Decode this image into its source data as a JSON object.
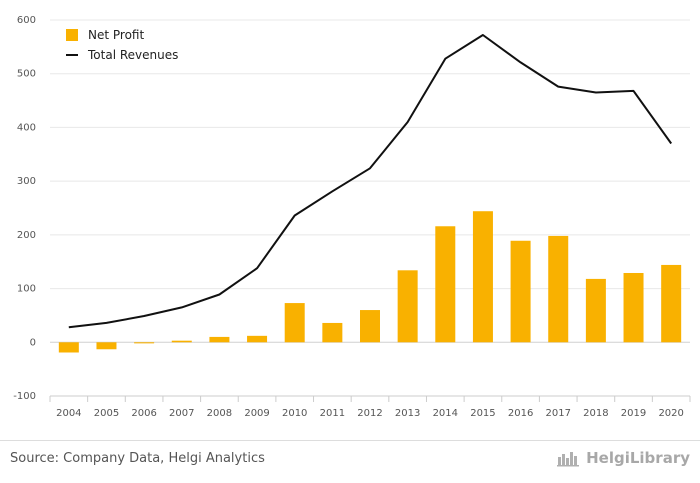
{
  "chart_data": {
    "type": "bar+line",
    "categories": [
      "2004",
      "2005",
      "2006",
      "2007",
      "2008",
      "2009",
      "2010",
      "2011",
      "2012",
      "2013",
      "2014",
      "2015",
      "2016",
      "2017",
      "2018",
      "2019",
      "2020"
    ],
    "series": [
      {
        "name": "Net Profit",
        "kind": "bar",
        "color": "#f9b100",
        "values": [
          -19,
          -13,
          -2,
          3,
          10,
          12,
          73,
          36,
          60,
          134,
          216,
          244,
          189,
          198,
          118,
          129,
          144
        ]
      },
      {
        "name": "Total Revenues",
        "kind": "line",
        "color": "#111111",
        "values": [
          28,
          36,
          49,
          65,
          89,
          138,
          236,
          281,
          324,
          410,
          528,
          572,
          521,
          476,
          465,
          468,
          370
        ]
      }
    ],
    "yticks": [
      -100,
      0,
      100,
      200,
      300,
      400,
      500,
      600
    ],
    "ylim": [
      -100,
      600
    ],
    "grid": true,
    "legend": "top-left"
  },
  "footer": {
    "source": "Source: Company Data, Helgi Analytics",
    "brand": "HelgiLibrary"
  }
}
